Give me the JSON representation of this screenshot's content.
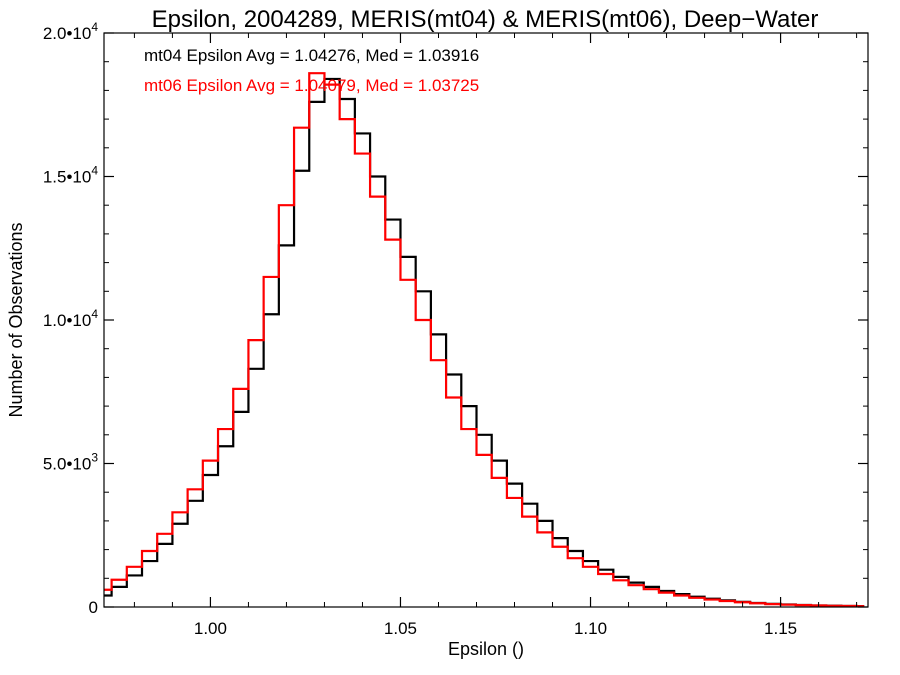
{
  "chart_data": {
    "type": "line",
    "style": "histogram-step",
    "title": "Epsilon, 2004289, MERIS(mt04) & MERIS(mt06), Deep−Water",
    "xlabel": "Epsilon ()",
    "ylabel": "Number of Observations",
    "xlim": [
      0.972,
      1.173
    ],
    "ylim": [
      0,
      20000
    ],
    "grid": false,
    "legend_position": "top-left",
    "x_ticks": [
      {
        "value": 1.0,
        "label": "1.00"
      },
      {
        "value": 1.05,
        "label": "1.05"
      },
      {
        "value": 1.1,
        "label": "1.10"
      },
      {
        "value": 1.15,
        "label": "1.15"
      }
    ],
    "y_ticks": [
      {
        "value": 0,
        "mantissa": "0",
        "exponent": ""
      },
      {
        "value": 5000,
        "mantissa": "5.0•10",
        "exponent": "3"
      },
      {
        "value": 10000,
        "mantissa": "1.0•10",
        "exponent": "4"
      },
      {
        "value": 15000,
        "mantissa": "1.5•10",
        "exponent": "4"
      },
      {
        "value": 20000,
        "mantissa": "2.0•10",
        "exponent": "4"
      }
    ],
    "annotations": [
      {
        "text": "mt04 Epsilon Avg = 1.04276, Med = 1.03916",
        "color": "#000000"
      },
      {
        "text": "mt06 Epsilon Avg = 1.04079, Med = 1.03725",
        "color": "#ff0000"
      }
    ],
    "series": [
      {
        "key": "mt04",
        "color": "#000000",
        "x": [
          0.972,
          0.976,
          0.98,
          0.984,
          0.988,
          0.992,
          0.996,
          1.0,
          1.004,
          1.008,
          1.012,
          1.016,
          1.02,
          1.024,
          1.028,
          1.032,
          1.036,
          1.04,
          1.044,
          1.048,
          1.052,
          1.056,
          1.06,
          1.064,
          1.068,
          1.072,
          1.076,
          1.08,
          1.084,
          1.088,
          1.092,
          1.096,
          1.1,
          1.104,
          1.108,
          1.112,
          1.116,
          1.12,
          1.124,
          1.128,
          1.132,
          1.136,
          1.14,
          1.144,
          1.148,
          1.152,
          1.156,
          1.16,
          1.164,
          1.168,
          1.172
        ],
        "y": [
          400,
          700,
          1100,
          1600,
          2200,
          2900,
          3700,
          4600,
          5600,
          6800,
          8300,
          10200,
          12600,
          15200,
          17600,
          18400,
          17700,
          16500,
          15000,
          13500,
          12200,
          11000,
          9500,
          8100,
          7000,
          6000,
          5100,
          4300,
          3600,
          3000,
          2400,
          1950,
          1600,
          1300,
          1050,
          850,
          700,
          560,
          450,
          360,
          290,
          230,
          180,
          140,
          110,
          90,
          70,
          55,
          45,
          35,
          30
        ]
      },
      {
        "key": "mt06",
        "color": "#ff0000",
        "x": [
          0.972,
          0.976,
          0.98,
          0.984,
          0.988,
          0.992,
          0.996,
          1.0,
          1.004,
          1.008,
          1.012,
          1.016,
          1.02,
          1.024,
          1.028,
          1.032,
          1.036,
          1.04,
          1.044,
          1.048,
          1.052,
          1.056,
          1.06,
          1.064,
          1.068,
          1.072,
          1.076,
          1.08,
          1.084,
          1.088,
          1.092,
          1.096,
          1.1,
          1.104,
          1.108,
          1.112,
          1.116,
          1.12,
          1.124,
          1.128,
          1.132,
          1.136,
          1.14,
          1.144,
          1.148,
          1.152,
          1.156,
          1.16,
          1.164,
          1.168,
          1.172
        ],
        "y": [
          600,
          950,
          1400,
          1950,
          2550,
          3300,
          4100,
          5100,
          6200,
          7600,
          9300,
          11500,
          14000,
          16700,
          18600,
          18200,
          17000,
          15800,
          14300,
          12800,
          11400,
          10000,
          8600,
          7300,
          6200,
          5300,
          4500,
          3800,
          3150,
          2600,
          2100,
          1700,
          1400,
          1150,
          930,
          760,
          620,
          500,
          400,
          320,
          260,
          210,
          165,
          130,
          100,
          80,
          65,
          52,
          42,
          34,
          28
        ]
      }
    ]
  }
}
